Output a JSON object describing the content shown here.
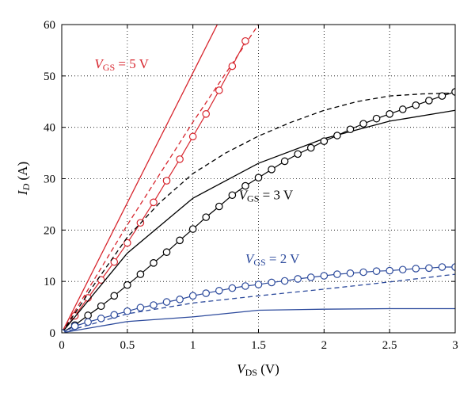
{
  "chart_data": {
    "type": "line",
    "xlabel": "V_DS (V)",
    "ylabel": "I_D (A)",
    "xlim": [
      0,
      3
    ],
    "ylim": [
      0,
      60
    ],
    "x_ticks": [
      "0",
      "0.5",
      "1",
      "1.5",
      "2",
      "2.5",
      "3"
    ],
    "y_ticks": [
      "0",
      "10",
      "20",
      "30",
      "40",
      "50",
      "60"
    ],
    "grid": true,
    "colors": {
      "vgs5": "#d7262e",
      "vgs3": "#000000",
      "vgs2": "#2c4a9c"
    },
    "annotations": [
      {
        "text_var": "V",
        "text_sub": "GS",
        "text_rest": " = 5 V",
        "color": "#d7262e",
        "at_x": 0.25,
        "at_y": 51.5
      },
      {
        "text_var": "V",
        "text_sub": "GS",
        "text_rest": " = 3 V",
        "color": "#000000",
        "at_x": 1.35,
        "at_y": 26.0
      },
      {
        "text_var": "V",
        "text_sub": "GS",
        "text_rest": " = 2 V",
        "color": "#2c4a9c",
        "at_x": 1.4,
        "at_y": 13.6
      }
    ],
    "series": [
      {
        "group": "vgs5",
        "style": "solid",
        "x": [
          0,
          0.5,
          1.0,
          1.5
        ],
        "y": [
          0,
          25.3,
          50.6,
          75.9
        ]
      },
      {
        "group": "vgs5",
        "style": "dashed",
        "x": [
          0,
          0.5,
          1.0,
          1.5
        ],
        "y": [
          0,
          21,
          41,
          60
        ]
      },
      {
        "group": "vgs5",
        "style": "markers",
        "x": [
          0,
          0.1,
          0.2,
          0.3,
          0.4,
          0.5,
          0.6,
          0.7,
          0.8,
          0.9,
          1.0,
          1.1,
          1.2,
          1.3,
          1.4
        ],
        "y": [
          0,
          3.3,
          6.8,
          10.3,
          13.8,
          17.5,
          21.4,
          25.4,
          29.6,
          33.8,
          38.2,
          42.6,
          47.2,
          51.9,
          56.8
        ]
      },
      {
        "group": "vgs3",
        "style": "solid",
        "x": [
          0,
          0.5,
          1.0,
          1.5,
          2.0,
          2.5,
          3.0
        ],
        "y": [
          0,
          15.5,
          26.2,
          33.0,
          37.8,
          41.2,
          43.3
        ]
      },
      {
        "group": "vgs3",
        "style": "dashed",
        "x": [
          0,
          0.25,
          0.5,
          0.75,
          1.0,
          1.25,
          1.5,
          1.75,
          2.0,
          2.25,
          2.5,
          2.75,
          3.0
        ],
        "y": [
          0,
          9.5,
          18.6,
          25.4,
          31.0,
          35.0,
          38.3,
          41.0,
          43.3,
          45.0,
          46.1,
          46.5,
          46.7
        ]
      },
      {
        "group": "vgs3",
        "style": "markers",
        "x": [
          0,
          0.1,
          0.2,
          0.3,
          0.4,
          0.5,
          0.6,
          0.7,
          0.8,
          0.9,
          1.0,
          1.1,
          1.2,
          1.3,
          1.4,
          1.5,
          1.6,
          1.7,
          1.8,
          1.9,
          2.0,
          2.1,
          2.2,
          2.3,
          2.4,
          2.5,
          2.6,
          2.7,
          2.8,
          2.9,
          3.0
        ],
        "y": [
          0,
          1.5,
          3.4,
          5.2,
          7.2,
          9.3,
          11.4,
          13.6,
          15.7,
          18.0,
          20.2,
          22.5,
          24.6,
          26.8,
          28.6,
          30.2,
          31.8,
          33.4,
          34.8,
          36.0,
          37.3,
          38.4,
          39.6,
          40.7,
          41.7,
          42.6,
          43.5,
          44.3,
          45.2,
          46.1,
          46.9
        ]
      },
      {
        "group": "vgs2",
        "style": "solid",
        "x": [
          0,
          0.5,
          1.0,
          1.5,
          2.0,
          2.5,
          3.0
        ],
        "y": [
          0,
          2.2,
          3.1,
          4.4,
          4.6,
          4.7,
          4.7
        ]
      },
      {
        "group": "vgs2",
        "style": "dashed",
        "x": [
          0,
          0.5,
          1.0,
          1.5,
          2.0,
          2.5,
          3.0
        ],
        "y": [
          0,
          3.7,
          5.8,
          7.2,
          8.5,
          9.9,
          11.4
        ]
      },
      {
        "group": "vgs2",
        "style": "markers",
        "x": [
          0,
          0.1,
          0.2,
          0.3,
          0.4,
          0.5,
          0.6,
          0.7,
          0.8,
          0.9,
          1.0,
          1.1,
          1.2,
          1.3,
          1.4,
          1.5,
          1.6,
          1.7,
          1.8,
          1.9,
          2.0,
          2.1,
          2.2,
          2.3,
          2.4,
          2.5,
          2.6,
          2.7,
          2.8,
          2.9,
          3.0
        ],
        "y": [
          0,
          1.3,
          2.1,
          2.8,
          3.5,
          4.2,
          4.9,
          5.4,
          6.0,
          6.5,
          7.2,
          7.7,
          8.2,
          8.7,
          9.1,
          9.4,
          9.8,
          10.1,
          10.5,
          10.8,
          11.1,
          11.4,
          11.6,
          11.8,
          12.0,
          12.1,
          12.3,
          12.5,
          12.6,
          12.8,
          12.8
        ]
      }
    ]
  }
}
